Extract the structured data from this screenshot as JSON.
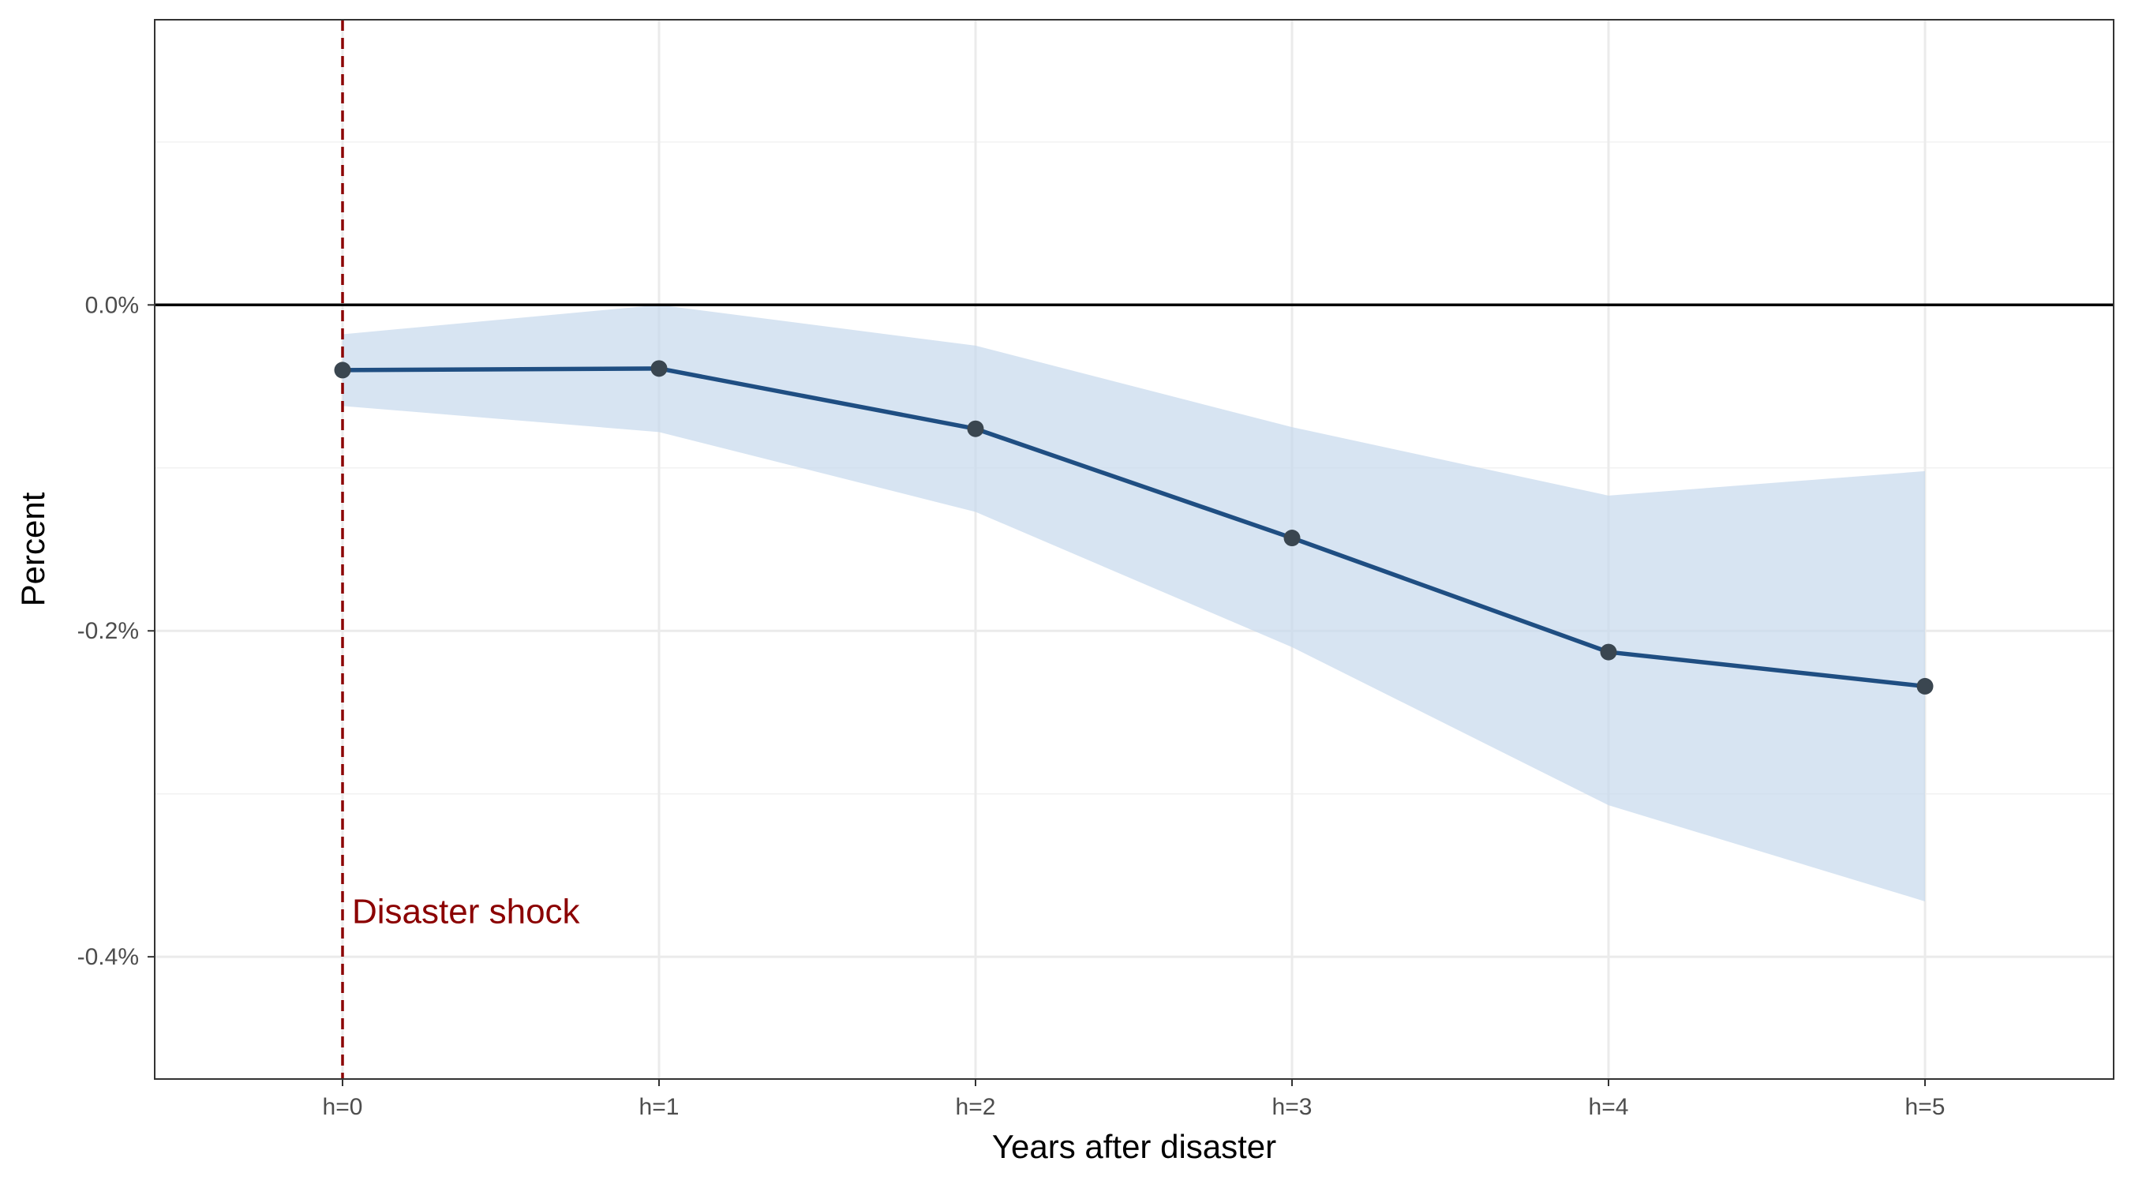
{
  "chart_data": {
    "type": "line",
    "title": "",
    "xlabel": "Years after disaster",
    "ylabel": "Percent",
    "categories": [
      "h=0",
      "h=1",
      "h=2",
      "h=3",
      "h=4",
      "h=5"
    ],
    "series": [
      {
        "values": [
          -0.04,
          -0.039,
          -0.076,
          -0.143,
          -0.213,
          -0.234
        ],
        "ci_upper": [
          -0.018,
          0.0,
          -0.025,
          -0.075,
          -0.117,
          -0.102
        ],
        "ci_lower": [
          -0.062,
          -0.078,
          -0.127,
          -0.21,
          -0.307,
          -0.366
        ]
      }
    ],
    "ylim": [
      -0.475,
      0.175
    ],
    "y_ticks": [
      0.0,
      -0.2,
      -0.4
    ],
    "y_tick_labels": [
      "0.0%",
      "-0.2%",
      "-0.4%"
    ],
    "y_minor_ticks": [
      0.1,
      -0.1,
      -0.3
    ],
    "hline": 0.0,
    "annotation": {
      "text": "Disaster shock",
      "at_category": "h=0",
      "y": -0.372,
      "style": "dashed-vertical-line"
    },
    "grid": true,
    "legend": "none",
    "colors": {
      "line": "#1f4e82",
      "point": "#3a4650",
      "ribbon": "#c6d9ec",
      "annotation": "#8b0000",
      "zero_line": "#000000",
      "grid": "#ebebeb",
      "panel_border": "#333333"
    }
  }
}
